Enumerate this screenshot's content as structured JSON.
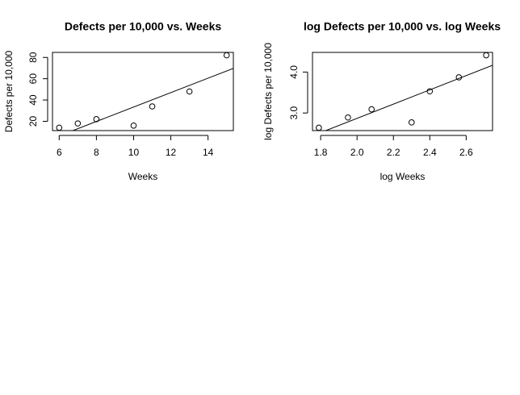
{
  "chart_data": [
    {
      "type": "scatter",
      "title": "Defects per 10,000 vs. Weeks",
      "xlabel": "Weeks",
      "ylabel": "Defects per 10,000",
      "x": [
        6,
        7,
        8,
        10,
        11,
        13,
        15
      ],
      "values": [
        14,
        18,
        22,
        16,
        34,
        48,
        82
      ],
      "xlim": [
        5.64,
        15.36
      ],
      "ylim": [
        11.28,
        84.72
      ],
      "xticks": [
        6,
        8,
        10,
        12,
        14
      ],
      "yticks": [
        20,
        40,
        60,
        80
      ],
      "line": {
        "intercept": -34.4,
        "slope": 6.78
      }
    },
    {
      "type": "scatter",
      "title": "log Defects per 10,000 vs. log Weeks",
      "xlabel": "log Weeks",
      "ylabel": "log Defects per 10,000",
      "x": [
        1.79,
        1.95,
        2.08,
        2.3,
        2.4,
        2.56,
        2.71
      ],
      "values": [
        2.64,
        2.89,
        3.09,
        2.77,
        3.53,
        3.87,
        4.41
      ],
      "xlim": [
        1.755,
        2.745
      ],
      "ylim": [
        2.57,
        4.48
      ],
      "xticks": [
        1.8,
        {
          "value": 2,
          "label": "2.0"
        },
        2.2,
        2.4,
        2.6
      ],
      "yticks": [
        {
          "value": 3,
          "label": "3.0"
        },
        {
          "value": 4,
          "label": "4.0"
        }
      ],
      "line": {
        "intercept": -0.609,
        "slope": 1.739
      }
    }
  ]
}
